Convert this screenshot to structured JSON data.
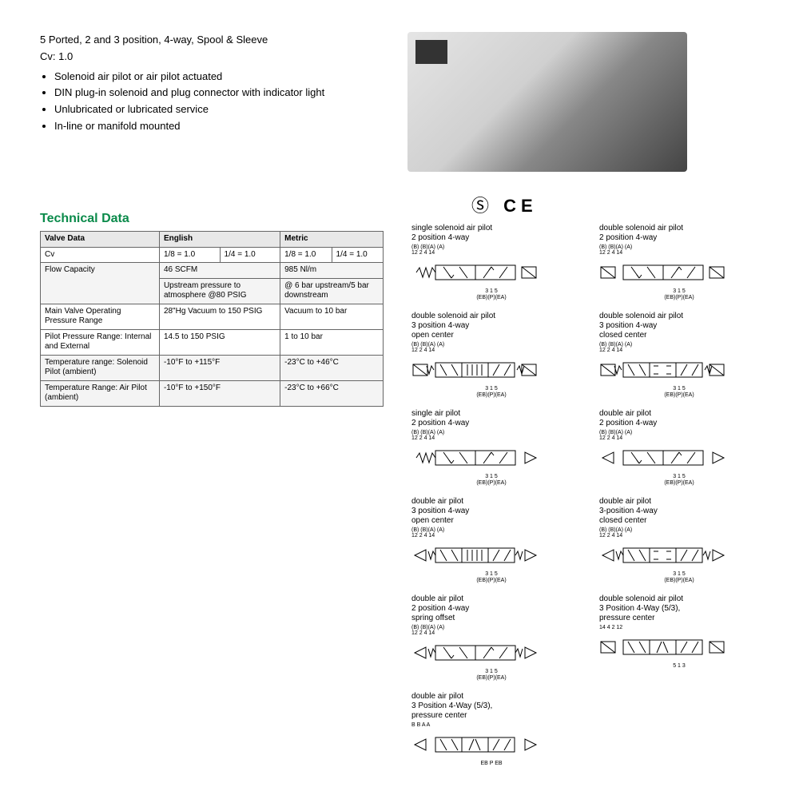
{
  "header": {
    "line1": "5 Ported, 2 and 3 position, 4-way, Spool & Sleeve",
    "line2": "Cv: 1.0",
    "bullets": [
      "Solenoid air pilot or air pilot actuated",
      "DIN plug-in solenoid and plug connector with indicator light",
      "Unlubricated or lubricated service",
      "In-line or manifold mounted"
    ]
  },
  "certs": {
    "csa": "Ⓢ",
    "ce": "CE"
  },
  "section_title": "Technical Data",
  "table": {
    "headers": [
      "Valve Data",
      "English",
      "Metric"
    ],
    "cv_label": "Cv",
    "cv_en1": "1/8 = 1.0",
    "cv_en2": "1/4 = 1.0",
    "cv_m1": "1/8 = 1.0",
    "cv_m2": "1/4 = 1.0",
    "flow_label": "Flow Capacity",
    "flow_en1": "46 SCFM",
    "flow_m1": "985 Nl/m",
    "flow_en2": "Upstream pressure to atmosphere @80 PSIG",
    "flow_m2": "@ 6 bar upstream/5 bar downstream",
    "main_label": "Main Valve Operating Pressure Range",
    "main_en": "28\"Hg Vacuum to 150 PSIG",
    "main_m": "Vacuum to 10 bar",
    "pilot_label": "Pilot Pressure Range: Internal and External",
    "pilot_en": "14.5 to 150 PSIG",
    "pilot_m": "1 to 10 bar",
    "temp1_label": "Temperature range: Solenoid Pilot (ambient)",
    "temp1_en": "-10°F to +115°F",
    "temp1_m": "-23°C to +46°C",
    "temp2_label": "Temperature Range: Air Pilot (ambient)",
    "temp2_en": "-10°F to +150°F",
    "temp2_m": "-23°C to +66°C"
  },
  "schematics": {
    "top_ports": "(B)   (B)(A)   (A)",
    "top_nums": "12   2 4    14",
    "bot_nums": "3 1 5",
    "bot_ports": "(EB)(P)(EA)",
    "alt_top": "B   B A   A",
    "alt_bot": "EB  P  EB",
    "alt2_top": "14    4 2    12",
    "alt2_bot": "5 1 3",
    "items": [
      {
        "col": "left",
        "title": "single solenoid air pilot\n2 position 4-way",
        "type": "2pos",
        "left": "spring",
        "right": "sol"
      },
      {
        "col": "right",
        "title": "double solenoid air pilot\n2 position 4-way",
        "type": "2pos",
        "left": "sol",
        "right": "sol"
      },
      {
        "col": "left",
        "title": "double solenoid air pilot\n3 position 4-way\nopen center",
        "type": "3pos",
        "center": "open",
        "left": "sol_spr",
        "right": "sol_spr"
      },
      {
        "col": "right",
        "title": "double solenoid air pilot\n3 position 4-way\nclosed center",
        "type": "3pos",
        "center": "closed",
        "left": "sol_spr",
        "right": "sol_spr"
      },
      {
        "col": "left",
        "title": "single air pilot\n2 position 4-way",
        "type": "2pos",
        "left": "spring",
        "right": "pilot"
      },
      {
        "col": "right",
        "title": "double air pilot\n2 position 4-way",
        "type": "2pos",
        "left": "pilot",
        "right": "pilot"
      },
      {
        "col": "left",
        "title": "double air pilot\n3 position 4-way\nopen center",
        "type": "3pos",
        "center": "open",
        "left": "pilot_spr",
        "right": "pilot_spr"
      },
      {
        "col": "right",
        "title": "double air pilot\n3-position 4-way\nclosed center",
        "type": "3pos",
        "center": "closed",
        "left": "pilot_spr",
        "right": "pilot_spr"
      },
      {
        "col": "left",
        "title": "double air pilot\n2 position 4-way\nspring offset",
        "type": "2pos",
        "left": "pilot_spr",
        "right": "pilot_spr"
      },
      {
        "col": "right",
        "title": "double solenoid air pilot\n3 Position 4-Way (5/3),\npressure center",
        "type": "3pos",
        "center": "pressure",
        "left": "sol",
        "right": "sol",
        "labels": "alt2"
      },
      {
        "col": "left",
        "title": "double air pilot\n3 Position 4-Way (5/3),\npressure center",
        "type": "3pos",
        "center": "pressure",
        "left": "pilot",
        "right": "pilot",
        "labels": "alt"
      }
    ]
  },
  "colors": {
    "accent": "#0a8a4a",
    "border": "#666666",
    "shade": "#e8e8e8"
  }
}
